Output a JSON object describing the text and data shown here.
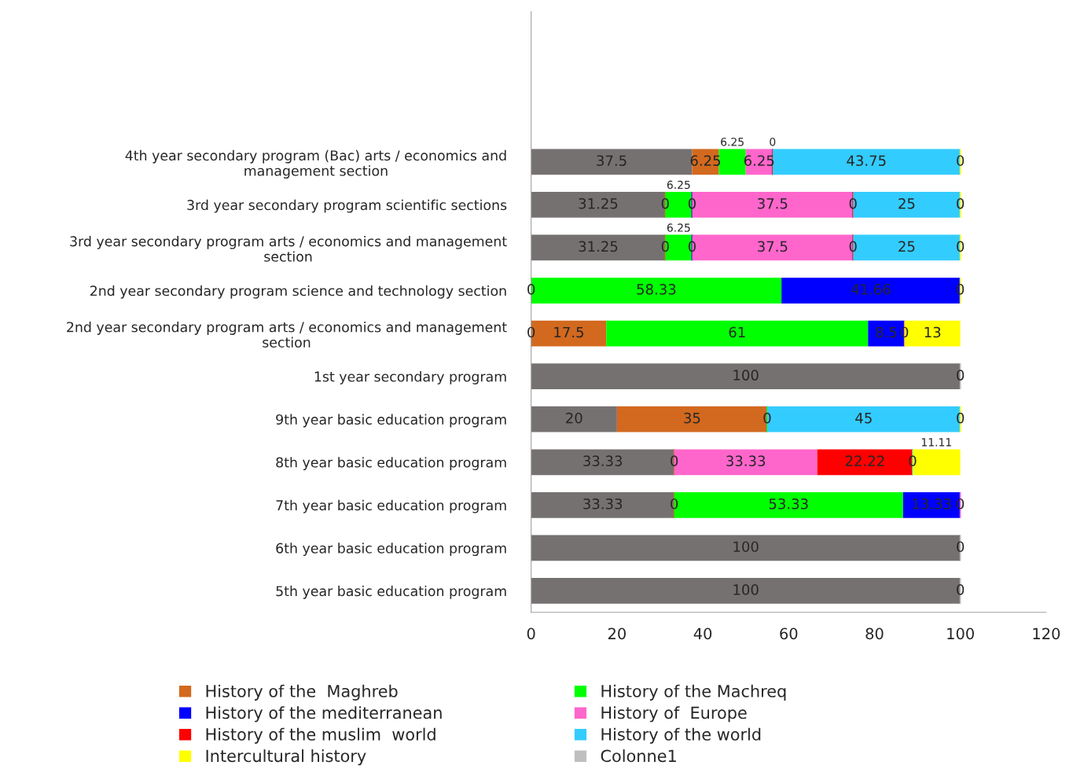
{
  "chart_data": {
    "type": "bar",
    "orientation": "horizontal",
    "stacked": true,
    "grid": false,
    "legend": "bottom",
    "categories": [
      "4th year secondary program (Bac) arts / economics and\nmanagement section",
      "3rd year secondary program scientific sections",
      "3rd year secondary program arts / economics and management\nsection",
      "2nd year secondary program science and technology section",
      "2nd year secondary program arts / economics and management\nsection",
      "1st year secondary program",
      "9th year basic education program",
      "8th year basic education program",
      "7th year basic education program",
      "6th year basic education program",
      "5th year basic education program"
    ],
    "xlim": [
      0,
      120
    ],
    "xticks": [
      0,
      20,
      40,
      60,
      80,
      100,
      120
    ],
    "series": [
      {
        "color": "#767171",
        "values": [
          37.5,
          31.25,
          31.25,
          0,
          0,
          100,
          20,
          33.33,
          33.33,
          100,
          100
        ],
        "value_labels": [
          "37.5",
          "31.25",
          "31.25",
          "0",
          "0",
          "100",
          "20",
          "33.33",
          "33.33",
          "100",
          "100"
        ]
      },
      {
        "name": "History of the  Maghreb",
        "color": "#d2691e",
        "values": [
          6.25,
          0,
          0,
          null,
          17.5,
          null,
          35,
          0,
          0,
          null,
          null
        ],
        "value_labels": [
          "6.25",
          "0",
          "0",
          null,
          "17.5",
          null,
          "35",
          "0",
          "0",
          null,
          null
        ]
      },
      {
        "name": "History of the Machreq",
        "color": "#00ff00",
        "values": [
          6.25,
          6.25,
          6.25,
          58.33,
          61,
          null,
          0,
          null,
          53.33,
          null,
          null
        ],
        "value_labels": [
          "6.25",
          "6.25",
          "6.25",
          "58.33",
          "61",
          null,
          "0",
          null,
          "53.33",
          null,
          null
        ]
      },
      {
        "name": "History of the mediterranean",
        "color": "#0000ff",
        "values": [
          null,
          0,
          0,
          41.66,
          8.5,
          null,
          null,
          null,
          13.33,
          null,
          null
        ],
        "value_labels": [
          null,
          "0",
          "0",
          "41.66",
          "8.5",
          null,
          null,
          null,
          "13.33",
          null,
          null
        ]
      },
      {
        "name": "History of  Europe",
        "color": "#ff66cc",
        "values": [
          6.25,
          37.5,
          37.5,
          null,
          0,
          null,
          null,
          33.33,
          0,
          null,
          null
        ],
        "value_labels": [
          "6.25",
          "37.5",
          "37.5",
          null,
          "0",
          null,
          null,
          "33.33",
          "0",
          null,
          null
        ]
      },
      {
        "name": "History of the muslim  world",
        "color": "#ff0000",
        "values": [
          0,
          0,
          0,
          null,
          null,
          null,
          null,
          22.22,
          null,
          null,
          null
        ],
        "value_labels": [
          "0",
          "0",
          "0",
          null,
          null,
          null,
          null,
          "22.22",
          null,
          null,
          null
        ]
      },
      {
        "name": "History of the world",
        "color": "#33ccff",
        "values": [
          43.75,
          25,
          25,
          null,
          null,
          null,
          45,
          0,
          null,
          null,
          null
        ],
        "value_labels": [
          "43.75",
          "25",
          "25",
          null,
          null,
          null,
          "45",
          "0",
          null,
          null,
          null
        ]
      },
      {
        "name": "Intercultural history",
        "color": "#ffff00",
        "values": [
          0,
          0,
          0,
          0,
          13,
          null,
          0,
          11.11,
          null,
          null,
          null
        ],
        "value_labels": [
          "0",
          "0",
          "0",
          "0",
          "13",
          null,
          "0",
          "11.11",
          null,
          null,
          null
        ]
      },
      {
        "name": "Colonne1",
        "color": "#bfbfbf",
        "values": [
          null,
          null,
          null,
          null,
          null,
          0,
          null,
          null,
          null,
          0,
          0
        ],
        "value_labels": [
          null,
          null,
          null,
          null,
          null,
          "0",
          null,
          null,
          null,
          "0",
          "0"
        ]
      }
    ]
  }
}
